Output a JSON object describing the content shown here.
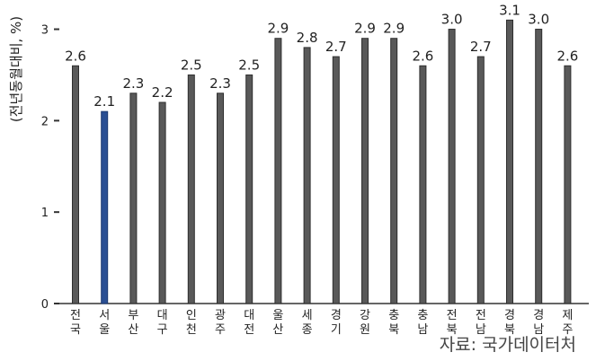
{
  "chart_data": {
    "type": "bar",
    "categories": [
      "전국",
      "서울",
      "부산",
      "대구",
      "인천",
      "광주",
      "대전",
      "울산",
      "세종",
      "경기",
      "강원",
      "충북",
      "충남",
      "전북",
      "전남",
      "경북",
      "경남",
      "제주"
    ],
    "values": [
      2.6,
      2.1,
      2.3,
      2.2,
      2.5,
      2.3,
      2.5,
      2.9,
      2.8,
      2.7,
      2.9,
      2.9,
      2.6,
      3.0,
      2.7,
      3.1,
      3.0,
      2.6
    ],
    "value_labels": [
      "2.6",
      "2.1",
      "2.3",
      "2.2",
      "2.5",
      "2.3",
      "2.5",
      "2.9",
      "2.8",
      "2.7",
      "2.9",
      "2.9",
      "2.6",
      "3.0",
      "2.7",
      "3.1",
      "3.0",
      "2.6"
    ],
    "ylabel": "(전년동월대비, %)",
    "ylim": [
      0,
      3.3
    ],
    "yticks": [
      0,
      1,
      2,
      3
    ],
    "grid": false,
    "legend": "none",
    "highlight_index": 1,
    "colors": {
      "bar": "#595959",
      "highlight": "#2a4f93",
      "axis": "#333333",
      "label": "#222222"
    }
  },
  "source": "자료: 국가데이터처"
}
